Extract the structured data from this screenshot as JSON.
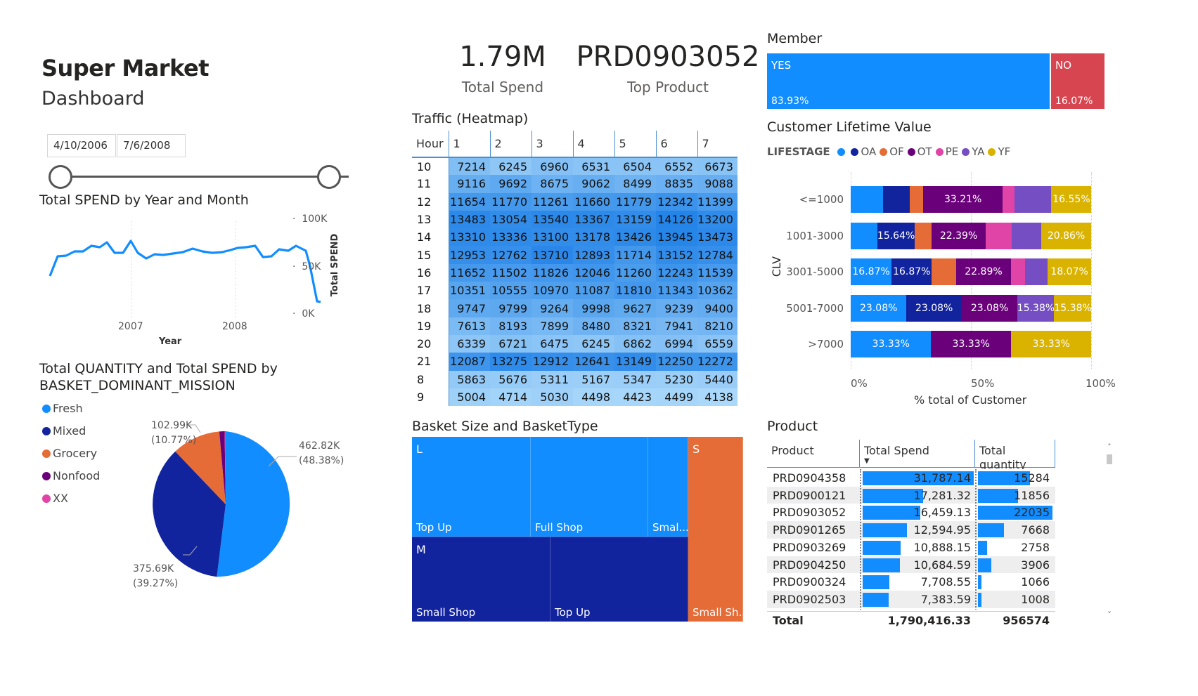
{
  "header": {
    "title": "Super Market",
    "subtitle": "Dashboard"
  },
  "date_slicer": {
    "start": "4/10/2006",
    "end": "7/6/2008"
  },
  "kpis": {
    "total_spend": {
      "value": "1.79M",
      "label": "Total Spend"
    },
    "top_product": {
      "value": "PRD0903052",
      "label": "Top Product"
    }
  },
  "line_chart": {
    "title": "Total SPEND by Year and Month",
    "xlabel": "Year",
    "ylabel": "Total SPEND",
    "x_ticks": [
      "2007",
      "2008"
    ],
    "y_ticks": [
      "100K",
      "50K",
      "0K"
    ],
    "color": "#118dff"
  },
  "pie_chart": {
    "title_line1": "Total QUANTITY and Total SPEND by",
    "title_line2": "BASKET_DOMINANT_MISSION",
    "legend": [
      {
        "name": "Fresh",
        "color": "#118dff"
      },
      {
        "name": "Mixed",
        "color": "#12239e"
      },
      {
        "name": "Grocery",
        "color": "#e66c37"
      },
      {
        "name": "Nonfood",
        "color": "#6b007b"
      },
      {
        "name": "XX",
        "color": "#e044a7"
      }
    ],
    "labels": {
      "fresh": [
        "462.82K",
        "(48.38%)"
      ],
      "mixed": [
        "375.69K",
        "(39.27%)"
      ],
      "grocery": [
        "102.99K",
        "(10.77%)"
      ]
    }
  },
  "heatmap": {
    "title": "Traffic (Heatmap)",
    "hour_header": "Hour",
    "day_headers": [
      "1",
      "2",
      "3",
      "4",
      "5",
      "6",
      "7"
    ],
    "rows": [
      {
        "hour": "10",
        "values": [
          "7214",
          "6245",
          "6960",
          "6531",
          "6504",
          "6552",
          "6673"
        ]
      },
      {
        "hour": "11",
        "values": [
          "9116",
          "9692",
          "8675",
          "9062",
          "8499",
          "8835",
          "9088"
        ]
      },
      {
        "hour": "12",
        "values": [
          "11654",
          "11770",
          "11261",
          "11660",
          "11779",
          "12342",
          "11399"
        ]
      },
      {
        "hour": "13",
        "values": [
          "13483",
          "13054",
          "13540",
          "13367",
          "13159",
          "14126",
          "13200"
        ]
      },
      {
        "hour": "14",
        "values": [
          "13310",
          "13336",
          "13100",
          "13178",
          "13426",
          "13945",
          "13473"
        ]
      },
      {
        "hour": "15",
        "values": [
          "12953",
          "12762",
          "13710",
          "12893",
          "11714",
          "13152",
          "12784"
        ]
      },
      {
        "hour": "16",
        "values": [
          "11652",
          "11502",
          "11826",
          "12046",
          "11260",
          "12243",
          "11539"
        ]
      },
      {
        "hour": "17",
        "values": [
          "10351",
          "10555",
          "10970",
          "11087",
          "11810",
          "11343",
          "10362"
        ]
      },
      {
        "hour": "18",
        "values": [
          "9747",
          "9799",
          "9264",
          "9998",
          "9627",
          "9239",
          "9400"
        ]
      },
      {
        "hour": "19",
        "values": [
          "7613",
          "8193",
          "7899",
          "8480",
          "8321",
          "7941",
          "8210"
        ]
      },
      {
        "hour": "20",
        "values": [
          "6339",
          "6721",
          "6475",
          "6245",
          "6862",
          "6994",
          "6559"
        ]
      },
      {
        "hour": "21",
        "values": [
          "12087",
          "13275",
          "12912",
          "12641",
          "13149",
          "12250",
          "12272"
        ]
      },
      {
        "hour": "8",
        "values": [
          "5863",
          "5676",
          "5311",
          "5167",
          "5347",
          "5230",
          "5440"
        ]
      },
      {
        "hour": "9",
        "values": [
          "5004",
          "4714",
          "5030",
          "4498",
          "4423",
          "4499",
          "4138"
        ]
      }
    ]
  },
  "member": {
    "title": "Member",
    "segments": [
      {
        "label": "YES",
        "pct": "83.93%",
        "color": "#118dff",
        "share": 0.8393
      },
      {
        "label": "NO",
        "pct": "16.07%",
        "color": "#d64550",
        "share": 0.1607
      }
    ]
  },
  "clv": {
    "title": "Customer Lifetime Value",
    "legend_title": "LIFESTAGE",
    "legend": [
      {
        "name": "",
        "color": "#118dff"
      },
      {
        "name": "OA",
        "color": "#12239e"
      },
      {
        "name": "OF",
        "color": "#e66c37"
      },
      {
        "name": "OT",
        "color": "#6b007b"
      },
      {
        "name": "PE",
        "color": "#e044a7"
      },
      {
        "name": "YA",
        "color": "#744ec2"
      },
      {
        "name": "YF",
        "color": "#d9b300"
      }
    ],
    "ylabel": "CLV",
    "xlabel": "% total of Customer",
    "x_ticks": [
      "0%",
      "50%",
      "100%"
    ],
    "rows": [
      {
        "label": "<=1000",
        "segments": [
          {
            "color": "#118dff",
            "share": 0.135,
            "text": ""
          },
          {
            "color": "#12239e",
            "share": 0.11,
            "text": ""
          },
          {
            "color": "#e66c37",
            "share": 0.055,
            "text": ""
          },
          {
            "color": "#6b007b",
            "share": 0.3321,
            "text": "33.21%"
          },
          {
            "color": "#e044a7",
            "share": 0.05,
            "text": ""
          },
          {
            "color": "#744ec2",
            "share": 0.1524,
            "text": ""
          },
          {
            "color": "#d9b300",
            "share": 0.1655,
            "text": "16.55%"
          }
        ]
      },
      {
        "label": "1001-3000",
        "segments": [
          {
            "color": "#118dff",
            "share": 0.11,
            "text": ""
          },
          {
            "color": "#12239e",
            "share": 0.1564,
            "text": "15.64%"
          },
          {
            "color": "#e66c37",
            "share": 0.07,
            "text": ""
          },
          {
            "color": "#6b007b",
            "share": 0.2239,
            "text": "22.39%"
          },
          {
            "color": "#e044a7",
            "share": 0.1105,
            "text": ""
          },
          {
            "color": "#744ec2",
            "share": 0.1206,
            "text": ""
          },
          {
            "color": "#d9b300",
            "share": 0.2086,
            "text": "20.86%"
          }
        ]
      },
      {
        "label": "3001-5000",
        "segments": [
          {
            "color": "#118dff",
            "share": 0.1687,
            "text": "16.87%"
          },
          {
            "color": "#12239e",
            "share": 0.1687,
            "text": "16.87%"
          },
          {
            "color": "#e66c37",
            "share": 0.1,
            "text": ""
          },
          {
            "color": "#6b007b",
            "share": 0.2289,
            "text": "22.89%"
          },
          {
            "color": "#e044a7",
            "share": 0.06,
            "text": ""
          },
          {
            "color": "#744ec2",
            "share": 0.0923,
            "text": ""
          },
          {
            "color": "#d9b300",
            "share": 0.1807,
            "text": "18.07%"
          }
        ]
      },
      {
        "label": "5001-7000",
        "segments": [
          {
            "color": "#118dff",
            "share": 0.2308,
            "text": "23.08%"
          },
          {
            "color": "#12239e",
            "share": 0.2308,
            "text": "23.08%"
          },
          {
            "color": "#6b007b",
            "share": 0.2308,
            "text": "23.08%"
          },
          {
            "color": "#744ec2",
            "share": 0.1538,
            "text": "15.38%"
          },
          {
            "color": "#d9b300",
            "share": 0.1538,
            "text": "15.38%"
          }
        ]
      },
      {
        "label": ">7000",
        "segments": [
          {
            "color": "#118dff",
            "share": 0.3333,
            "text": "33.33%"
          },
          {
            "color": "#6b007b",
            "share": 0.3333,
            "text": "33.33%"
          },
          {
            "color": "#d9b300",
            "share": 0.3334,
            "text": "33.33%"
          }
        ]
      }
    ]
  },
  "treemap": {
    "title": "Basket Size and BasketType",
    "groups": {
      "L": {
        "label": "L",
        "items": [
          "Top Up",
          "Full Shop",
          "Smal..."
        ]
      },
      "M": {
        "label": "M",
        "items": [
          "Small Shop",
          "Top Up"
        ]
      },
      "S": {
        "label": "S",
        "items": [
          "Small Sh..."
        ]
      }
    },
    "colors": {
      "L": "#118dff",
      "M": "#12239e",
      "S": "#e66c37"
    }
  },
  "product_table": {
    "title": "Product",
    "headers": [
      "Product",
      "Total Spend",
      "Total quantity"
    ],
    "rows": [
      {
        "product": "PRD0904358",
        "spend": "31,787.14",
        "qty": "15284",
        "spend_share": 1.0,
        "qty_share": 0.694
      },
      {
        "product": "PRD0900121",
        "spend": "17,281.32",
        "qty": "11856",
        "spend_share": 0.544,
        "qty_share": 0.538
      },
      {
        "product": "PRD0903052",
        "spend": "16,459.13",
        "qty": "22035",
        "spend_share": 0.518,
        "qty_share": 1.0
      },
      {
        "product": "PRD0901265",
        "spend": "12,594.95",
        "qty": "7668",
        "spend_share": 0.396,
        "qty_share": 0.348
      },
      {
        "product": "PRD0903269",
        "spend": "10,888.15",
        "qty": "2758",
        "spend_share": 0.343,
        "qty_share": 0.125
      },
      {
        "product": "PRD0904250",
        "spend": "10,684.59",
        "qty": "3906",
        "spend_share": 0.336,
        "qty_share": 0.177
      },
      {
        "product": "PRD0900324",
        "spend": "7,708.55",
        "qty": "1066",
        "spend_share": 0.243,
        "qty_share": 0.048
      },
      {
        "product": "PRD0902503",
        "spend": "7,383.59",
        "qty": "1008",
        "spend_share": 0.232,
        "qty_share": 0.046
      }
    ],
    "total": {
      "label": "Total",
      "spend": "1,790,416.33",
      "qty": "956574"
    }
  }
}
